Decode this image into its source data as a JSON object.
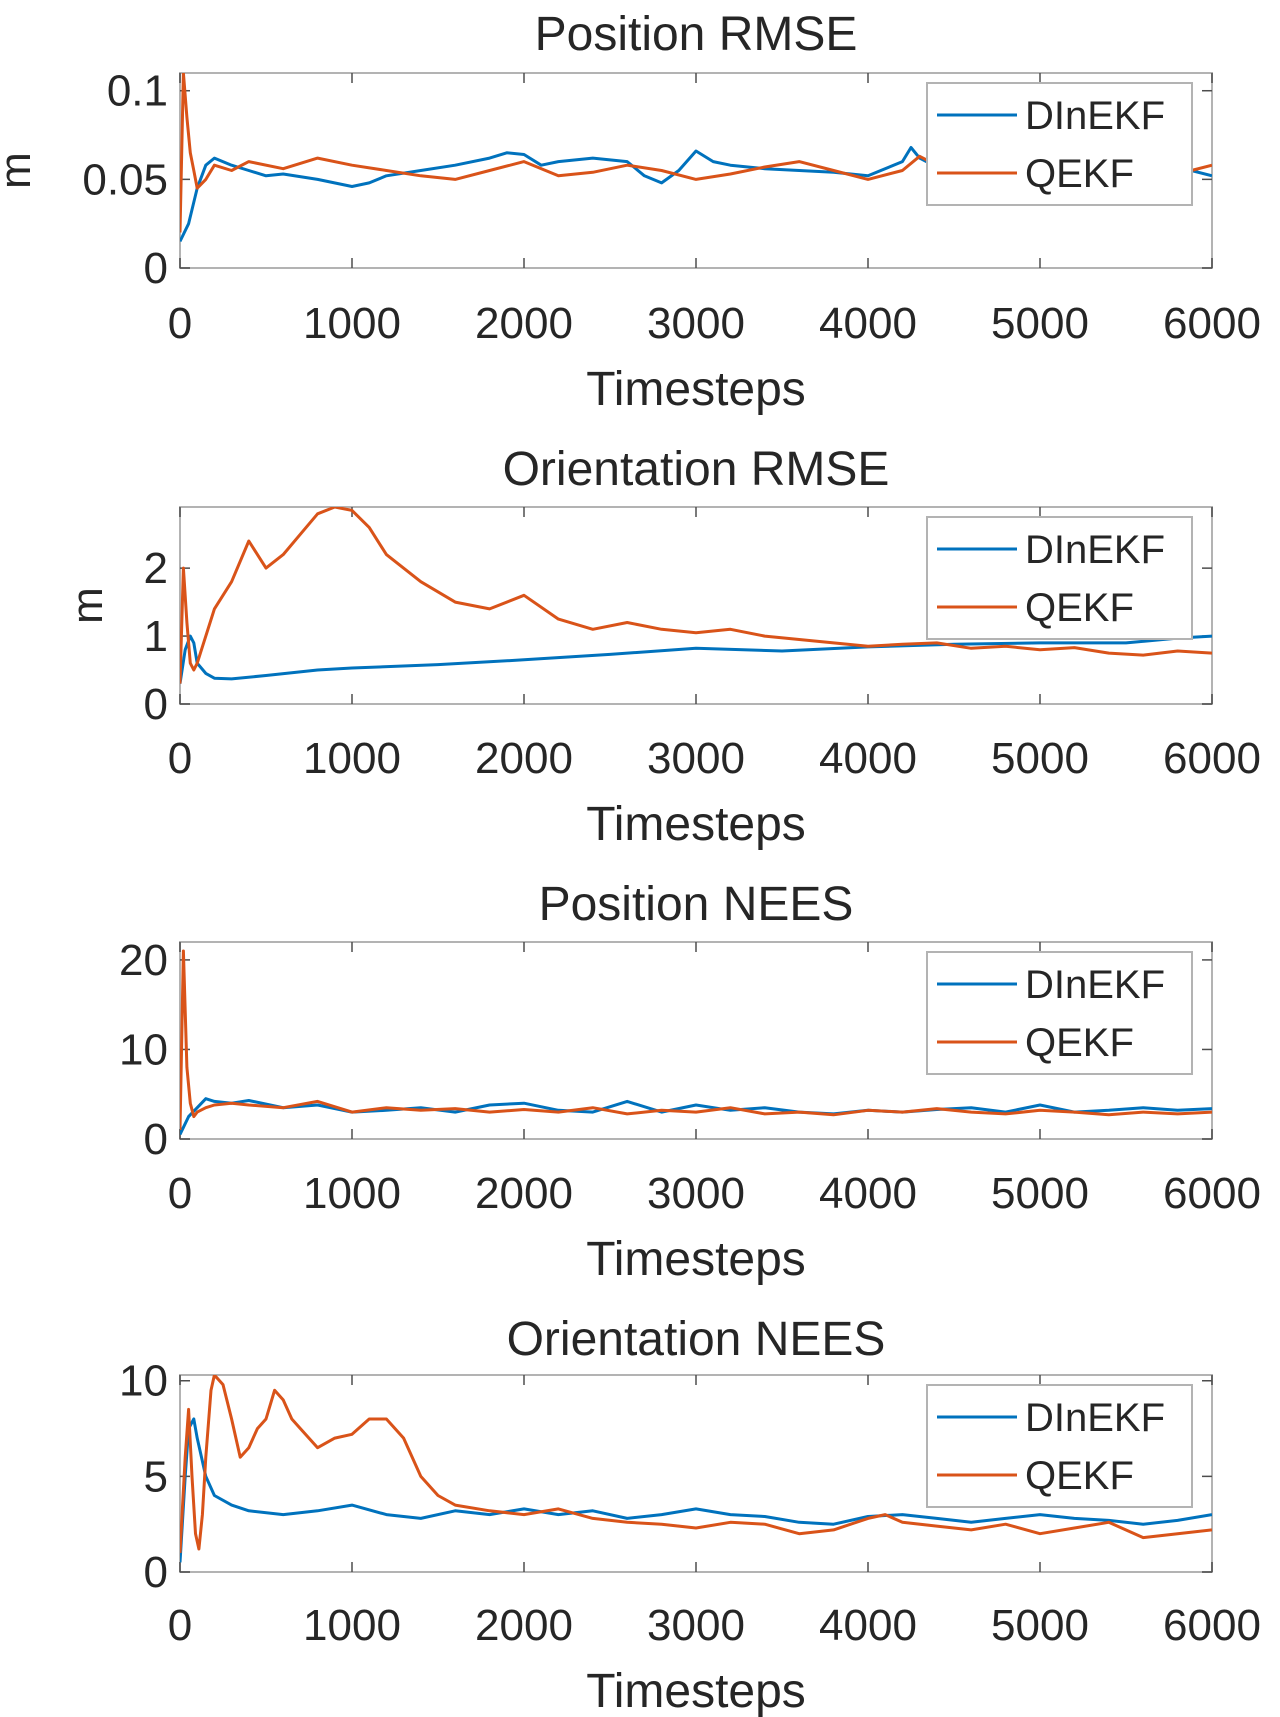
{
  "chart_data": [
    {
      "type": "line",
      "title": "Position RMSE",
      "xlabel": "Timesteps",
      "ylabel": "m",
      "xlim": [
        0,
        6000
      ],
      "ylim": [
        0,
        0.11
      ],
      "xticks": [
        0,
        1000,
        2000,
        3000,
        4000,
        5000,
        6000
      ],
      "xtick_labels": [
        "0",
        "1000",
        "2000",
        "3000",
        "4000",
        "5000",
        "6000"
      ],
      "yticks": [
        0,
        0.05,
        0.1
      ],
      "ytick_labels": [
        "0",
        "0.05",
        "0.1"
      ],
      "legend": "top-right",
      "series": [
        {
          "name": "DInEKF",
          "color": "#0072BD",
          "x": [
            0,
            50,
            100,
            150,
            200,
            300,
            400,
            500,
            600,
            800,
            1000,
            1100,
            1200,
            1400,
            1600,
            1800,
            1900,
            2000,
            2100,
            2200,
            2400,
            2600,
            2700,
            2800,
            2900,
            3000,
            3100,
            3200,
            3400,
            3600,
            3800,
            4000,
            4200,
            4250,
            4300,
            4400,
            4600,
            4800,
            5000,
            5200,
            5400,
            5600,
            5800,
            6000
          ],
          "y": [
            0.015,
            0.025,
            0.045,
            0.058,
            0.062,
            0.058,
            0.055,
            0.052,
            0.053,
            0.05,
            0.046,
            0.048,
            0.052,
            0.055,
            0.058,
            0.062,
            0.065,
            0.064,
            0.058,
            0.06,
            0.062,
            0.06,
            0.052,
            0.048,
            0.055,
            0.066,
            0.06,
            0.058,
            0.056,
            0.055,
            0.054,
            0.052,
            0.06,
            0.068,
            0.062,
            0.057,
            0.054,
            0.058,
            0.052,
            0.056,
            0.059,
            0.055,
            0.057,
            0.052
          ]
        },
        {
          "name": "QEKF",
          "color": "#D95319",
          "x": [
            0,
            20,
            40,
            60,
            80,
            100,
            150,
            200,
            300,
            400,
            600,
            800,
            1000,
            1200,
            1400,
            1600,
            1800,
            2000,
            2200,
            2400,
            2600,
            2800,
            3000,
            3200,
            3400,
            3600,
            3800,
            4000,
            4200,
            4300,
            4400,
            4600,
            4800,
            5000,
            5200,
            5400,
            5600,
            5800,
            6000
          ],
          "y": [
            0.02,
            0.11,
            0.085,
            0.065,
            0.055,
            0.045,
            0.05,
            0.058,
            0.055,
            0.06,
            0.056,
            0.062,
            0.058,
            0.055,
            0.052,
            0.05,
            0.055,
            0.06,
            0.052,
            0.054,
            0.058,
            0.055,
            0.05,
            0.053,
            0.057,
            0.06,
            0.055,
            0.05,
            0.055,
            0.063,
            0.058,
            0.052,
            0.057,
            0.054,
            0.059,
            0.055,
            0.058,
            0.053,
            0.058
          ]
        }
      ]
    },
    {
      "type": "line",
      "title": "Orientation RMSE",
      "xlabel": "Timesteps",
      "ylabel": "m",
      "xlim": [
        0,
        6000
      ],
      "ylim": [
        0,
        2.9
      ],
      "xticks": [
        0,
        1000,
        2000,
        3000,
        4000,
        5000,
        6000
      ],
      "xtick_labels": [
        "0",
        "1000",
        "2000",
        "3000",
        "4000",
        "5000",
        "6000"
      ],
      "yticks": [
        0,
        1,
        2
      ],
      "ytick_labels": [
        "0",
        "1",
        "2"
      ],
      "legend": "top-right",
      "series": [
        {
          "name": "DInEKF",
          "color": "#0072BD",
          "x": [
            0,
            30,
            60,
            80,
            100,
            150,
            200,
            300,
            500,
            800,
            1000,
            1500,
            2000,
            2500,
            3000,
            3500,
            4000,
            4500,
            5000,
            5500,
            5800,
            6000
          ],
          "y": [
            0.3,
            0.8,
            1.0,
            0.9,
            0.6,
            0.45,
            0.38,
            0.37,
            0.42,
            0.5,
            0.53,
            0.58,
            0.65,
            0.73,
            0.82,
            0.78,
            0.84,
            0.88,
            0.9,
            0.9,
            0.97,
            1.0
          ]
        },
        {
          "name": "QEKF",
          "color": "#D95319",
          "x": [
            0,
            20,
            40,
            60,
            80,
            100,
            150,
            200,
            300,
            400,
            500,
            600,
            700,
            800,
            900,
            1000,
            1100,
            1200,
            1400,
            1600,
            1800,
            2000,
            2200,
            2400,
            2600,
            2800,
            3000,
            3200,
            3400,
            3600,
            3800,
            4000,
            4200,
            4400,
            4600,
            4800,
            5000,
            5200,
            5400,
            5600,
            5800,
            6000
          ],
          "y": [
            0.3,
            2.0,
            1.2,
            0.6,
            0.5,
            0.6,
            1.0,
            1.4,
            1.8,
            2.4,
            2.0,
            2.2,
            2.5,
            2.8,
            2.9,
            2.85,
            2.6,
            2.2,
            1.8,
            1.5,
            1.4,
            1.6,
            1.25,
            1.1,
            1.2,
            1.1,
            1.05,
            1.1,
            1.0,
            0.95,
            0.9,
            0.85,
            0.88,
            0.9,
            0.82,
            0.85,
            0.8,
            0.83,
            0.75,
            0.72,
            0.78,
            0.75
          ]
        }
      ]
    },
    {
      "type": "line",
      "title": "Position NEES",
      "xlabel": "Timesteps",
      "ylabel": "",
      "xlim": [
        0,
        6000
      ],
      "ylim": [
        0,
        22
      ],
      "xticks": [
        0,
        1000,
        2000,
        3000,
        4000,
        5000,
        6000
      ],
      "xtick_labels": [
        "0",
        "1000",
        "2000",
        "3000",
        "4000",
        "5000",
        "6000"
      ],
      "yticks": [
        0,
        10,
        20
      ],
      "ytick_labels": [
        "0",
        "10",
        "20"
      ],
      "legend": "top-right",
      "series": [
        {
          "name": "DInEKF",
          "color": "#0072BD",
          "x": [
            0,
            50,
            100,
            150,
            200,
            300,
            400,
            600,
            800,
            1000,
            1200,
            1400,
            1600,
            1800,
            2000,
            2200,
            2400,
            2600,
            2800,
            3000,
            3200,
            3400,
            3600,
            3800,
            4000,
            4200,
            4400,
            4600,
            4800,
            5000,
            5200,
            5400,
            5600,
            5800,
            6000
          ],
          "y": [
            0.5,
            2.5,
            3.5,
            4.5,
            4.2,
            4.0,
            4.3,
            3.5,
            3.8,
            3.0,
            3.2,
            3.5,
            3.0,
            3.8,
            4.0,
            3.2,
            3.0,
            4.2,
            3.0,
            3.8,
            3.2,
            3.5,
            3.0,
            2.8,
            3.2,
            3.0,
            3.3,
            3.5,
            3.0,
            3.8,
            3.0,
            3.2,
            3.5,
            3.2,
            3.4
          ]
        },
        {
          "name": "QEKF",
          "color": "#D95319",
          "x": [
            0,
            20,
            40,
            60,
            80,
            100,
            150,
            200,
            300,
            400,
            600,
            800,
            1000,
            1200,
            1400,
            1600,
            1800,
            2000,
            2200,
            2400,
            2600,
            2800,
            3000,
            3200,
            3400,
            3600,
            3800,
            4000,
            4200,
            4400,
            4600,
            4800,
            5000,
            5200,
            5400,
            5600,
            5800,
            6000
          ],
          "y": [
            1.0,
            21.0,
            8.0,
            4.0,
            2.5,
            3.0,
            3.5,
            3.8,
            4.0,
            3.8,
            3.5,
            4.2,
            3.0,
            3.5,
            3.2,
            3.4,
            3.0,
            3.3,
            3.0,
            3.5,
            2.8,
            3.2,
            3.0,
            3.5,
            2.8,
            3.0,
            2.7,
            3.2,
            3.0,
            3.4,
            3.0,
            2.8,
            3.2,
            3.0,
            2.7,
            3.0,
            2.8,
            3.0
          ]
        }
      ]
    },
    {
      "type": "line",
      "title": "Orientation NEES",
      "xlabel": "Timesteps",
      "ylabel": "",
      "xlim": [
        0,
        6000
      ],
      "ylim": [
        0,
        10.3
      ],
      "xticks": [
        0,
        1000,
        2000,
        3000,
        4000,
        5000,
        6000
      ],
      "xtick_labels": [
        "0",
        "1000",
        "2000",
        "3000",
        "4000",
        "5000",
        "6000"
      ],
      "yticks": [
        0,
        5,
        10
      ],
      "ytick_labels": [
        "0",
        "5",
        "10"
      ],
      "legend": "top-right",
      "series": [
        {
          "name": "DInEKF",
          "color": "#0072BD",
          "x": [
            0,
            30,
            50,
            80,
            100,
            150,
            200,
            300,
            400,
            600,
            800,
            1000,
            1200,
            1400,
            1600,
            1800,
            2000,
            2200,
            2400,
            2600,
            2800,
            3000,
            3200,
            3400,
            3600,
            3800,
            4000,
            4200,
            4400,
            4600,
            4800,
            5000,
            5200,
            5400,
            5600,
            5800,
            6000
          ],
          "y": [
            0.5,
            5.0,
            7.5,
            8.0,
            7.0,
            5.0,
            4.0,
            3.5,
            3.2,
            3.0,
            3.2,
            3.5,
            3.0,
            2.8,
            3.2,
            3.0,
            3.3,
            3.0,
            3.2,
            2.8,
            3.0,
            3.3,
            3.0,
            2.9,
            2.6,
            2.5,
            2.9,
            3.0,
            2.8,
            2.6,
            2.8,
            3.0,
            2.8,
            2.7,
            2.5,
            2.7,
            3.0
          ]
        },
        {
          "name": "QEKF",
          "color": "#D95319",
          "x": [
            0,
            30,
            50,
            70,
            90,
            110,
            130,
            150,
            180,
            200,
            250,
            300,
            350,
            400,
            450,
            500,
            550,
            600,
            650,
            700,
            800,
            900,
            1000,
            1100,
            1200,
            1300,
            1400,
            1500,
            1600,
            1800,
            2000,
            2200,
            2400,
            2600,
            2800,
            3000,
            3200,
            3400,
            3600,
            3800,
            4000,
            4100,
            4200,
            4400,
            4600,
            4800,
            5000,
            5200,
            5400,
            5600,
            5800,
            6000
          ],
          "y": [
            1.0,
            6.0,
            8.5,
            5.0,
            2.0,
            1.2,
            3.0,
            6.0,
            9.5,
            10.3,
            9.8,
            8.0,
            6.0,
            6.5,
            7.5,
            8.0,
            9.5,
            9.0,
            8.0,
            7.5,
            6.5,
            7.0,
            7.2,
            8.0,
            8.0,
            7.0,
            5.0,
            4.0,
            3.5,
            3.2,
            3.0,
            3.3,
            2.8,
            2.6,
            2.5,
            2.3,
            2.6,
            2.5,
            2.0,
            2.2,
            2.8,
            3.0,
            2.6,
            2.4,
            2.2,
            2.5,
            2.0,
            2.3,
            2.6,
            1.8,
            2.0,
            2.2
          ]
        }
      ]
    }
  ]
}
